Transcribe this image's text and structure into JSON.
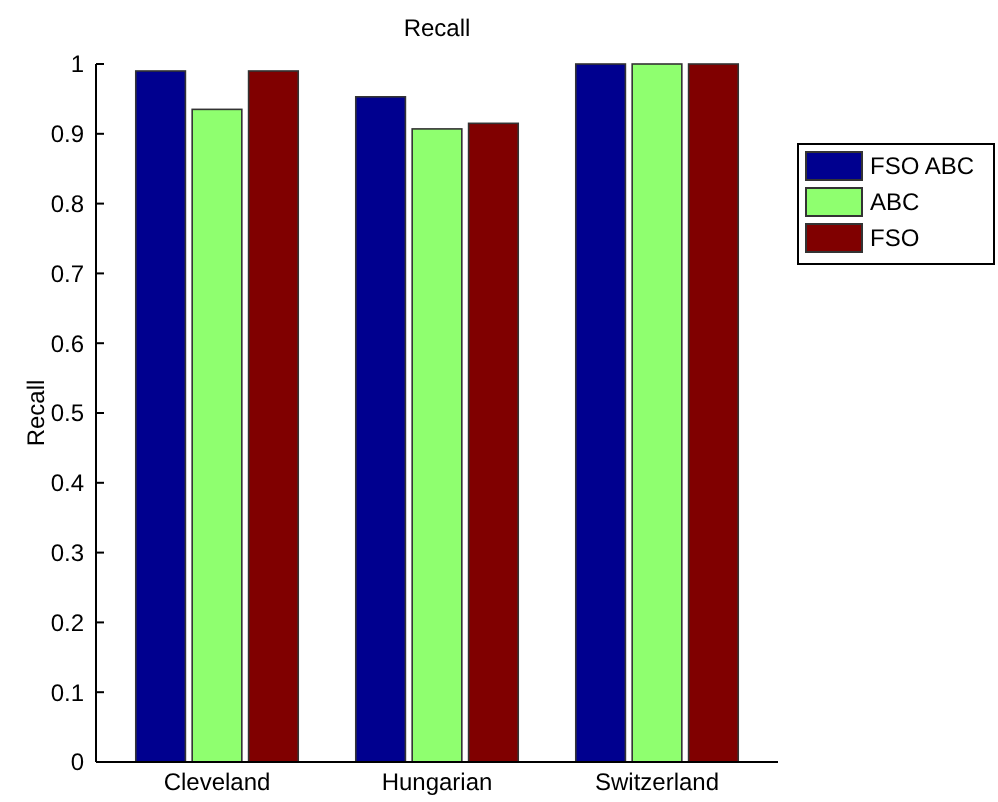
{
  "chart_data": {
    "type": "bar",
    "title": "Recall",
    "ylabel": "Recall",
    "categories": [
      "Cleveland",
      "Hungarian",
      "Switzerland"
    ],
    "series": [
      {
        "name": "FSO ABC",
        "color": "#00008f",
        "values": [
          0.99,
          0.953,
          1
        ]
      },
      {
        "name": "ABC",
        "color": "#8fff6f",
        "values": [
          0.935,
          0.907,
          1
        ]
      },
      {
        "name": "FSO",
        "color": "#800000",
        "values": [
          0.99,
          0.915,
          1
        ]
      }
    ],
    "ylim": [
      0,
      1
    ],
    "yticks": [
      0,
      0.1,
      0.2,
      0.3,
      0.4,
      0.5,
      0.6,
      0.7,
      0.8,
      0.9,
      1
    ],
    "legend": "right",
    "grid": false
  }
}
